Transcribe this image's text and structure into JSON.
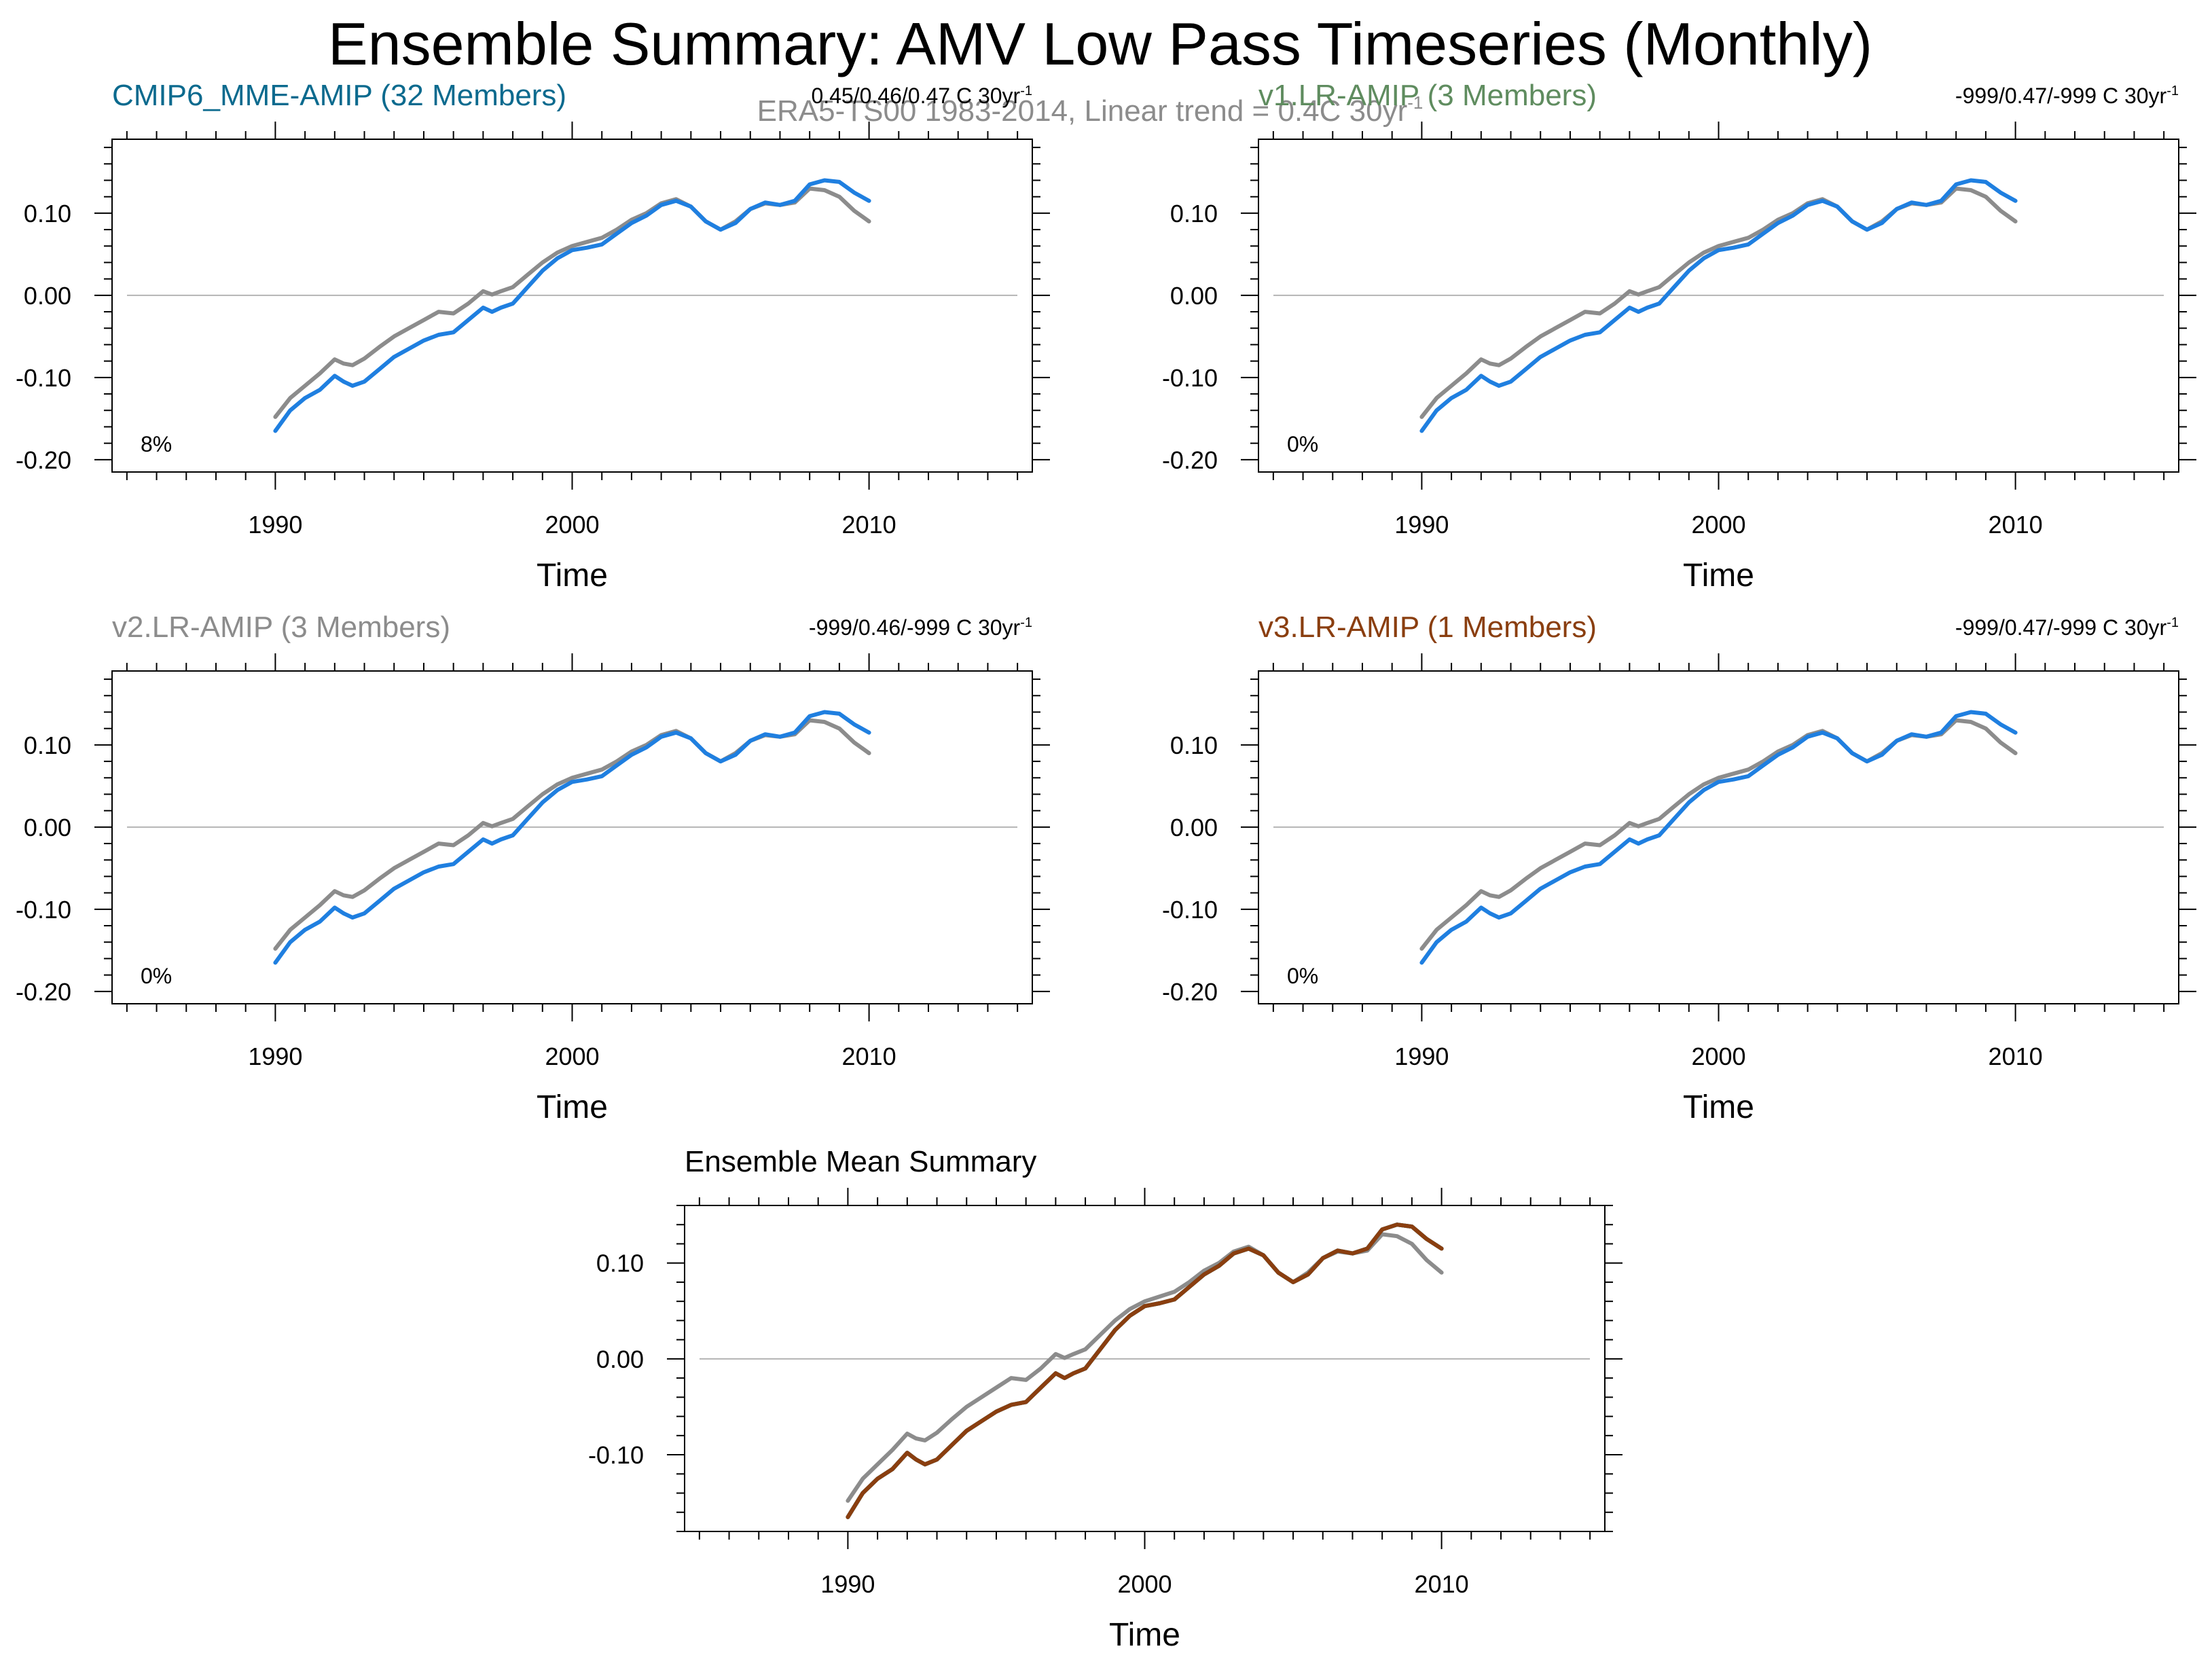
{
  "title": "Ensemble Summary: AMV Low Pass Timeseries (Monthly)",
  "subtitle": "ERA5-TS00 1983-2014, Linear trend = 0.4C 30yr",
  "subtitle_sup": "-1",
  "colors": {
    "obs": "#8c8c8c",
    "model": "#1f7fe0",
    "zero_line": "#b4b4b4",
    "frame": "#000000",
    "cmip6_title": "#0b6a8e",
    "v1_title": "#5f8c5f",
    "v2_title": "#8c8c8c",
    "v3_title": "#8a3e0f"
  },
  "chart_data": [
    {
      "type": "line",
      "panel_title": "CMIP6_MME-AMIP (32 Members)",
      "trend_text": "0.45/0.46/0.47 C 30yr",
      "trend_sup": "-1",
      "pct_text": "8%",
      "xlabel": "Time",
      "xlim": [
        1984.5,
        2015.5
      ],
      "ylim": [
        -0.215,
        0.19
      ],
      "xticks": [
        1990,
        2000,
        2010
      ],
      "xtick_labels": [
        "1990",
        "2000",
        "2010"
      ],
      "yticks": [
        0.1,
        0.0,
        -0.1,
        -0.2
      ],
      "ytick_labels": [
        "0.10",
        "0.00",
        "-0.10",
        "-0.20"
      ],
      "zero_line": true,
      "series": [
        {
          "color_key": "obs",
          "values": "obs"
        },
        {
          "color_key": "model",
          "values": "model"
        }
      ]
    },
    {
      "type": "line",
      "panel_title": "v1.LR-AMIP (3 Members)",
      "trend_text": "-999/0.47/-999 C 30yr",
      "trend_sup": "-1",
      "pct_text": "0%",
      "xlabel": "Time",
      "xlim": [
        1984.5,
        2015.5
      ],
      "ylim": [
        -0.215,
        0.19
      ],
      "xticks": [
        1990,
        2000,
        2010
      ],
      "xtick_labels": [
        "1990",
        "2000",
        "2010"
      ],
      "yticks": [
        0.1,
        0.0,
        -0.1,
        -0.2
      ],
      "ytick_labels": [
        "0.10",
        "0.00",
        "-0.10",
        "-0.20"
      ],
      "zero_line": true,
      "series": [
        {
          "color_key": "obs",
          "values": "obs"
        },
        {
          "color_key": "model",
          "values": "model"
        }
      ]
    },
    {
      "type": "line",
      "panel_title": "v2.LR-AMIP (3 Members)",
      "trend_text": "-999/0.46/-999 C 30yr",
      "trend_sup": "-1",
      "pct_text": "0%",
      "xlabel": "Time",
      "xlim": [
        1984.5,
        2015.5
      ],
      "ylim": [
        -0.215,
        0.19
      ],
      "xticks": [
        1990,
        2000,
        2010
      ],
      "xtick_labels": [
        "1990",
        "2000",
        "2010"
      ],
      "yticks": [
        0.1,
        0.0,
        -0.1,
        -0.2
      ],
      "ytick_labels": [
        "0.10",
        "0.00",
        "-0.10",
        "-0.20"
      ],
      "zero_line": true,
      "series": [
        {
          "color_key": "obs",
          "values": "obs"
        },
        {
          "color_key": "model",
          "values": "model"
        }
      ]
    },
    {
      "type": "line",
      "panel_title": "v3.LR-AMIP (1 Members)",
      "trend_text": "-999/0.47/-999 C 30yr",
      "trend_sup": "-1",
      "pct_text": "0%",
      "xlabel": "Time",
      "xlim": [
        1984.5,
        2015.5
      ],
      "ylim": [
        -0.215,
        0.19
      ],
      "xticks": [
        1990,
        2000,
        2010
      ],
      "xtick_labels": [
        "1990",
        "2000",
        "2010"
      ],
      "yticks": [
        0.1,
        0.0,
        -0.1,
        -0.2
      ],
      "ytick_labels": [
        "0.10",
        "0.00",
        "-0.10",
        "-0.20"
      ],
      "zero_line": true,
      "series": [
        {
          "color_key": "obs",
          "values": "obs"
        },
        {
          "color_key": "model",
          "values": "model"
        }
      ]
    },
    {
      "type": "line",
      "panel_title": "Ensemble Mean Summary",
      "trend_text": "",
      "trend_sup": "",
      "pct_text": "",
      "xlabel": "Time",
      "xlim": [
        1984.5,
        2015.5
      ],
      "ylim": [
        -0.18,
        0.16
      ],
      "xticks": [
        1990,
        2000,
        2010
      ],
      "xtick_labels": [
        "1990",
        "2000",
        "2010"
      ],
      "yticks": [
        0.1,
        0.0,
        -0.1
      ],
      "ytick_labels": [
        "0.10",
        "0.00",
        "-0.10"
      ],
      "zero_line": true,
      "series": [
        {
          "color_key": "obs",
          "values": "obs"
        },
        {
          "color_key": "cmip6_title",
          "values": "model"
        },
        {
          "color_key": "model",
          "values": "model"
        },
        {
          "color_key": "v1_title",
          "values": "model"
        },
        {
          "color_key": "v3_title",
          "values": "model"
        }
      ]
    }
  ],
  "series_values": {
    "x": [
      1990.0,
      1990.5,
      1991.0,
      1991.5,
      1992.0,
      1992.3,
      1992.6,
      1993.0,
      1993.5,
      1994.0,
      1994.5,
      1995.0,
      1995.5,
      1996.0,
      1996.5,
      1997.0,
      1997.3,
      1997.6,
      1998.0,
      1998.5,
      1999.0,
      1999.5,
      2000.0,
      2000.5,
      2001.0,
      2001.5,
      2002.0,
      2002.5,
      2003.0,
      2003.5,
      2004.0,
      2004.5,
      2005.0,
      2005.5,
      2006.0,
      2006.5,
      2007.0,
      2007.5,
      2008.0,
      2008.5,
      2009.0,
      2009.5,
      2010.0
    ],
    "obs": [
      -0.148,
      -0.125,
      -0.11,
      -0.095,
      -0.078,
      -0.083,
      -0.085,
      -0.077,
      -0.063,
      -0.05,
      -0.04,
      -0.03,
      -0.02,
      -0.022,
      -0.01,
      0.005,
      0.001,
      0.005,
      0.01,
      0.025,
      0.04,
      0.052,
      0.06,
      0.065,
      0.07,
      0.08,
      0.092,
      0.1,
      0.112,
      0.117,
      0.108,
      0.09,
      0.08,
      0.09,
      0.105,
      0.112,
      0.11,
      0.113,
      0.13,
      0.128,
      0.12,
      0.103,
      0.09
    ],
    "model": [
      -0.165,
      -0.14,
      -0.125,
      -0.115,
      -0.098,
      -0.105,
      -0.11,
      -0.105,
      -0.09,
      -0.075,
      -0.065,
      -0.055,
      -0.048,
      -0.045,
      -0.03,
      -0.015,
      -0.02,
      -0.015,
      -0.01,
      0.01,
      0.03,
      0.045,
      0.055,
      0.058,
      0.062,
      0.075,
      0.088,
      0.097,
      0.11,
      0.115,
      0.108,
      0.09,
      0.08,
      0.088,
      0.105,
      0.113,
      0.11,
      0.115,
      0.135,
      0.14,
      0.138,
      0.125,
      0.115
    ]
  }
}
